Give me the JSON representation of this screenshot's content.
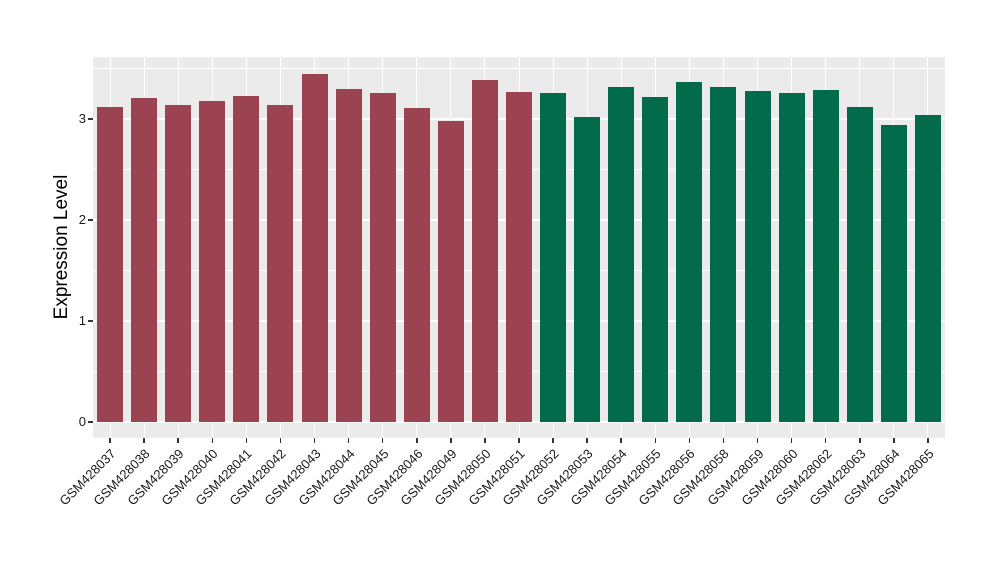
{
  "chart_data": {
    "type": "bar",
    "title": "",
    "ylabel": "Expression Level",
    "xlabel": "",
    "ylim": [
      0,
      3.6
    ],
    "yticks": [
      0,
      1,
      2,
      3
    ],
    "grid": "white major and minor horizontal lines, white vertical line at each category center, on gray panel",
    "legend_position": "none",
    "categories": [
      "GSM428037",
      "GSM428038",
      "GSM428039",
      "GSM428040",
      "GSM428041",
      "GSM428042",
      "GSM428043",
      "GSM428044",
      "GSM428045",
      "GSM428046",
      "GSM428049",
      "GSM428050",
      "GSM428051",
      "GSM428052",
      "GSM428053",
      "GSM428054",
      "GSM428055",
      "GSM428056",
      "GSM428058",
      "GSM428059",
      "GSM428060",
      "GSM428062",
      "GSM428063",
      "GSM428064",
      "GSM428065"
    ],
    "values": [
      3.12,
      3.21,
      3.14,
      3.18,
      3.23,
      3.14,
      3.45,
      3.3,
      3.26,
      3.11,
      2.98,
      3.39,
      3.27,
      3.26,
      3.02,
      3.32,
      3.22,
      3.37,
      3.32,
      3.28,
      3.26,
      3.29,
      3.12,
      2.94,
      3.04
    ],
    "bar_colors": [
      "#9C4351",
      "#9C4351",
      "#9C4351",
      "#9C4351",
      "#9C4351",
      "#9C4351",
      "#9C4351",
      "#9C4351",
      "#9C4351",
      "#9C4351",
      "#9C4351",
      "#9C4351",
      "#9C4351",
      "#026B4C",
      "#026B4C",
      "#026B4C",
      "#026B4C",
      "#026B4C",
      "#026B4C",
      "#026B4C",
      "#026B4C",
      "#026B4C",
      "#026B4C",
      "#026B4C",
      "#026B4C"
    ],
    "group_split": {
      "first_group_count": 13,
      "first_group_color": "#9C4351",
      "second_group_count": 12,
      "second_group_color": "#026B4C"
    }
  },
  "style": {
    "background": "#FFFFFF",
    "panel_background": "#EBEBEB",
    "grid_color": "#FFFFFF",
    "axis_text_color": "#1A1A1A",
    "axis_title_color": "#000000",
    "tick_mark_color": "#333333"
  }
}
